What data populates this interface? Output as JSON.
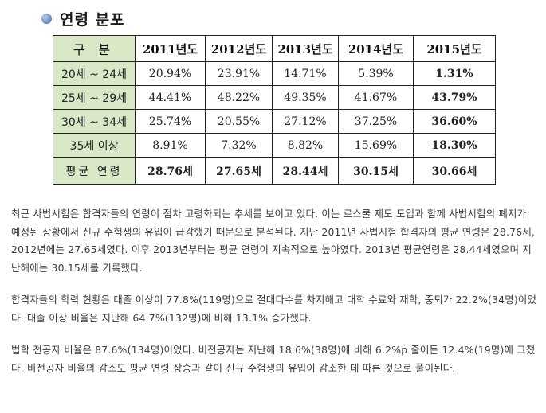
{
  "section": {
    "title": "연령 분포"
  },
  "table": {
    "header": [
      "구 분",
      "2011년도",
      "2012년도",
      "2013년도",
      "2014년도",
      "2015년도"
    ],
    "rows": [
      {
        "label": "20세 ~ 24세",
        "values": [
          "20.94%",
          "23.91%",
          "14.71%",
          "5.39%",
          "1.31%"
        ]
      },
      {
        "label": "25세 ~ 29세",
        "values": [
          "44.41%",
          "48.22%",
          "49.35%",
          "41.67%",
          "43.79%"
        ]
      },
      {
        "label": "30세 ~ 34세",
        "values": [
          "25.74%",
          "20.55%",
          "27.12%",
          "37.25%",
          "36.60%"
        ]
      },
      {
        "label": "35세 이상",
        "values": [
          "8.91%",
          "7.32%",
          "8.82%",
          "15.69%",
          "18.30%"
        ]
      },
      {
        "label": "평균 연령",
        "values": [
          "28.76세",
          "27.65세",
          "28.44세",
          "30.15세",
          "30.66세"
        ]
      }
    ]
  },
  "paragraphs": [
    "최근 사법시험은 합격자들의 연령이 점차 고령화되는 추세를 보이고 있다. 이는 로스쿨 제도 도입과 함께 사법시험의 폐지가 예정된 상황에서 신규 수험생의 유입이 급감했기 때문으로 분석된다. 지난 2011년 사법시험 합격자의 평균 연령은 28.76세, 2012년에는 27.65세였다. 이후 2013년부터는 평균 연령이 지속적으로 높아였다. 2013년 평균연령은 28.44세였으며 지난해에는 30.15세를 기록했다.",
    "합격자들의 학력 현황은 대졸 이상이 77.8%(119명)으로 절대다수를 차지해고 대학 수료와 재학, 중퇴가 22.2%(34명)이었다. 대졸 이상 비율은 지난해 64.7%(132명)에 비해 13.1% 증가했다.",
    "법학 전공자 비율은 87.6%(134명)이었다. 비전공자는 지난해 18.6%(38명)에 비해 6.2%p 줄어든 12.4%(19명)에 그쳤다. 비전공자 비율의 감소도 평균 연령 상승과 같이 신규 수험생의 유입이 감소한 데 따른 것으로 풀이된다."
  ]
}
